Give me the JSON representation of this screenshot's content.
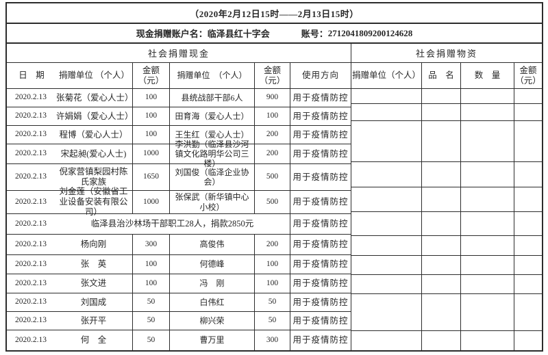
{
  "colors": {
    "background": "#ffffff",
    "border": "#2b2b2b",
    "text": "#262626"
  },
  "title": "（2020年2月12日15时——2月13日15时）",
  "account": {
    "name_label": "现金捐赠账户名：",
    "name_value": "临泽县红十字会",
    "number_label": "账号：",
    "number_value": "2712041809200124628"
  },
  "cash_section": {
    "title": "社会捐赠现金",
    "headers": {
      "date": "日　期",
      "donor": "捐赠单位 （个人）",
      "amount_l1": "金额",
      "amount_l2": "（元）",
      "donor2": "捐赠单位　（个人）",
      "amount2_l1": "金额",
      "amount2_l2": "（元）",
      "usage": "使用方向"
    }
  },
  "goods_section": {
    "title": "社会捐赠物资",
    "headers": {
      "donor": "捐赠单位（个人）",
      "item": "品　名",
      "quantity": "数　量",
      "amount_l1": "金额",
      "amount_l2": "（元）"
    }
  },
  "rows": [
    {
      "date": "2020.2.13",
      "donor1": "张菊花（爱心人士）",
      "amount1": "100",
      "donor2": "县统战部干部6人",
      "amount2": "900",
      "usage": "用于疫情防控"
    },
    {
      "date": "2020.2.13",
      "donor1": "许娟娟（爱心人士）",
      "amount1": "100",
      "donor2": "田育海（爱心人士）",
      "amount2": "100",
      "usage": "用于疫情防控"
    },
    {
      "date": "2020.2.13",
      "donor1": "程博（爱心人士）",
      "amount1": "100",
      "donor2": "王生红（爱心人士）",
      "amount2": "200",
      "usage": "用于疫情防控"
    },
    {
      "date": "2020.2.13",
      "donor1": "宋起昶(爱心人士)",
      "amount1": "1000",
      "donor2": "李洪勤（临泽县沙河镇文化路明华公司三楼）",
      "amount2": "200",
      "usage": "用于疫情防控"
    },
    {
      "date": "2020.2.13",
      "donor1": "倪家营镇梨园村陈氏家族",
      "amount1": "1650",
      "donor2": "刘国俊（临泽企业协会）",
      "amount2": "500",
      "usage": "用于疫情防控"
    },
    {
      "date": "2020.2.13",
      "donor1": "刘金莲（安徽省工业设备安装有限公司）",
      "amount1": "1000",
      "donor2": "张保武（新华镇中心小校）",
      "amount2": "500",
      "usage": "用于疫情防控"
    },
    {
      "date": "2020.2.13",
      "merged": "临泽县治沙林场干部职工28人，捐款2850元",
      "usage": "用于疫情防控"
    },
    {
      "date": "2020.2.13",
      "donor1": "杨向刚",
      "amount1": "300",
      "donor2": "高俊伟",
      "amount2": "200",
      "usage": "用于疫情防控"
    },
    {
      "date": "2020.2.13",
      "donor1": "张　英",
      "amount1": "100",
      "donor2": "何德峰",
      "amount2": "100",
      "usage": "用于疫情防控"
    },
    {
      "date": "2020.2.13",
      "donor1": "张文进",
      "amount1": "100",
      "donor2": "冯　刚",
      "amount2": "100",
      "usage": "用于疫情防控"
    },
    {
      "date": "2020.2.13",
      "donor1": "刘国成",
      "amount1": "50",
      "donor2": "白伟红",
      "amount2": "50",
      "usage": "用于疫情防控"
    },
    {
      "date": "2020.2.13",
      "donor1": "张开平",
      "amount1": "50",
      "donor2": "柳兴荣",
      "amount2": "50",
      "usage": "用于疫情防控"
    },
    {
      "date": "2020.2.13",
      "donor1": "何　全",
      "amount1": "50",
      "donor2": "曹万里",
      "amount2": "300",
      "usage": "用于疫情防控"
    }
  ]
}
